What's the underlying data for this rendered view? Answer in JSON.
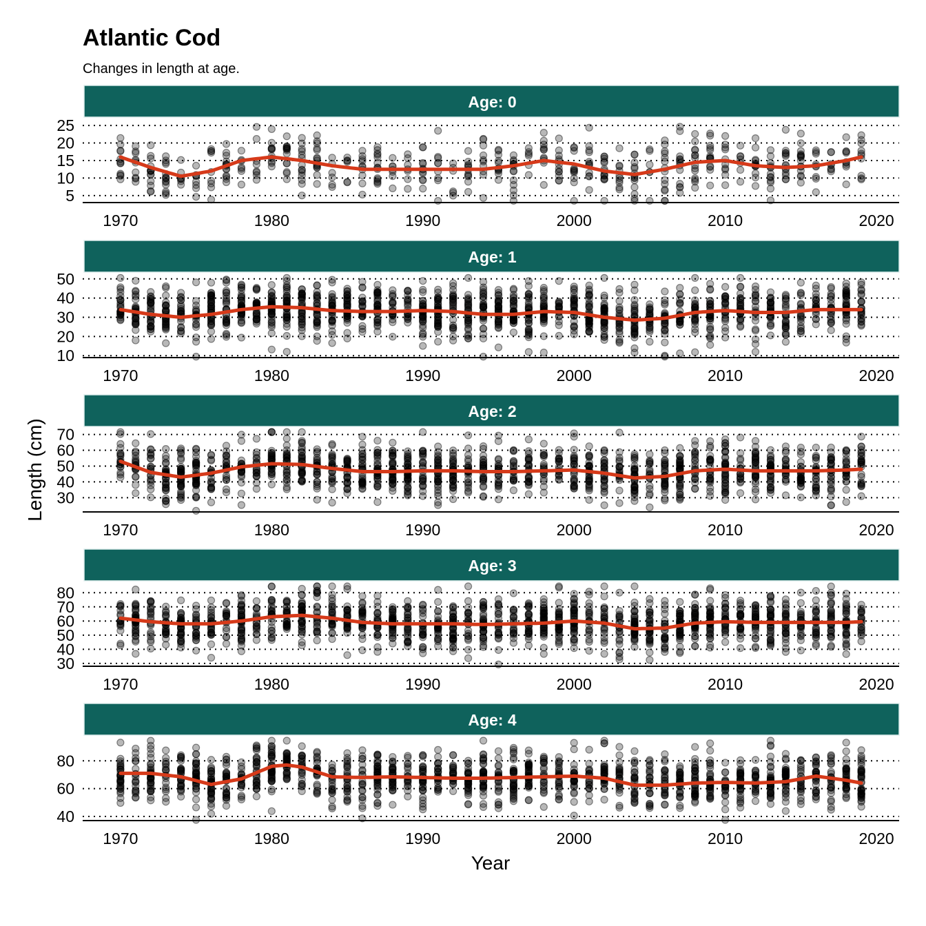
{
  "colors": {
    "strip": "#0f625c",
    "trend": "#d63a1a",
    "points": "#000000",
    "grid": "#000000"
  },
  "chart_data": {
    "type": "scatter",
    "title": "Atlantic Cod",
    "subtitle": "Changes in length at age.",
    "xlabel": "Year",
    "ylabel": "Length (cm)",
    "xlim": [
      1967.5,
      2021.5
    ],
    "x_ticks": [
      1970,
      1980,
      1990,
      2000,
      2010,
      2020
    ],
    "grid": "horizontal dotted",
    "points_note": "",
    "panels": [
      {
        "label": "Age: 0",
        "ylim": [
          3,
          26
        ],
        "y_ticks": [
          5,
          10,
          15,
          20,
          25
        ],
        "point_spread": 4,
        "smooth": {
          "x": [
            1970,
            1972,
            1974,
            1976,
            1978,
            1980,
            1982,
            1984,
            1986,
            1988,
            1990,
            1992,
            1994,
            1996,
            1998,
            2000,
            2002,
            2004,
            2006,
            2008,
            2010,
            2012,
            2014,
            2016,
            2018,
            2019
          ],
          "y": [
            16,
            13,
            10.5,
            12,
            15,
            16,
            15,
            13.5,
            12.5,
            12.5,
            12.5,
            12.5,
            12.5,
            13.5,
            15,
            14,
            12,
            11,
            12.5,
            14.5,
            15,
            13.5,
            13,
            13.5,
            15,
            16
          ]
        }
      },
      {
        "label": "Age: 1",
        "ylim": [
          9,
          51
        ],
        "y_ticks": [
          10,
          20,
          30,
          40,
          50
        ],
        "point_spread": 7,
        "smooth": {
          "x": [
            1970,
            1972,
            1974,
            1976,
            1978,
            1980,
            1982,
            1984,
            1986,
            1988,
            1990,
            1992,
            1994,
            1996,
            1998,
            2000,
            2002,
            2004,
            2006,
            2008,
            2010,
            2012,
            2014,
            2016,
            2018,
            2019
          ],
          "y": [
            34,
            31.5,
            30,
            31.5,
            34,
            35.5,
            35,
            33.5,
            33,
            33,
            33.5,
            33,
            31.5,
            31.5,
            33,
            32.5,
            30,
            28.5,
            29.5,
            32.5,
            33.5,
            32.5,
            32.5,
            34,
            34,
            34
          ]
        }
      },
      {
        "label": "Age: 2",
        "ylim": [
          21,
          72
        ],
        "y_ticks": [
          30,
          40,
          50,
          60,
          70
        ],
        "point_spread": 8.5,
        "smooth": {
          "x": [
            1970,
            1972,
            1974,
            1976,
            1978,
            1980,
            1982,
            1984,
            1986,
            1988,
            1990,
            1992,
            1994,
            1996,
            1998,
            2000,
            2002,
            2004,
            2006,
            2008,
            2010,
            2012,
            2014,
            2016,
            2018,
            2019
          ],
          "y": [
            53,
            46,
            43,
            45.5,
            49.5,
            51.5,
            51,
            48.5,
            46.5,
            46.5,
            47,
            47,
            46.5,
            46.5,
            47,
            47.5,
            45.5,
            42.5,
            43.5,
            47,
            48,
            47,
            47,
            47,
            47.5,
            48
          ]
        }
      },
      {
        "label": "Age: 3",
        "ylim": [
          28,
          85
        ],
        "y_ticks": [
          30,
          40,
          50,
          60,
          70,
          80
        ],
        "point_spread": 9,
        "smooth": {
          "x": [
            1970,
            1972,
            1974,
            1976,
            1978,
            1980,
            1982,
            1984,
            1986,
            1988,
            1990,
            1992,
            1994,
            1996,
            1998,
            2000,
            2002,
            2004,
            2006,
            2008,
            2010,
            2012,
            2014,
            2016,
            2018,
            2019
          ],
          "y": [
            62,
            59.5,
            58,
            58,
            60,
            63,
            64,
            62,
            59,
            58,
            58,
            58,
            57.5,
            58,
            58.5,
            60,
            58.5,
            54.5,
            55,
            58.5,
            59.5,
            59,
            59,
            59,
            59,
            59.5
          ]
        }
      },
      {
        "label": "Age: 4",
        "ylim": [
          37,
          95
        ],
        "y_ticks": [
          40,
          60,
          80
        ],
        "point_spread": 10,
        "smooth": {
          "x": [
            1970,
            1972,
            1974,
            1976,
            1978,
            1980,
            1981,
            1982,
            1984,
            1986,
            1988,
            1990,
            1992,
            1994,
            1996,
            1998,
            2000,
            2002,
            2004,
            2006,
            2008,
            2010,
            2012,
            2014,
            2016,
            2018,
            2019
          ],
          "y": [
            71,
            71,
            68.5,
            63,
            67,
            76,
            77,
            75.5,
            68.5,
            68,
            68.5,
            68,
            67.5,
            67.5,
            68,
            68.5,
            69,
            67.5,
            62.5,
            62.5,
            64,
            64.5,
            64,
            65,
            69,
            66,
            64
          ]
        }
      }
    ]
  }
}
